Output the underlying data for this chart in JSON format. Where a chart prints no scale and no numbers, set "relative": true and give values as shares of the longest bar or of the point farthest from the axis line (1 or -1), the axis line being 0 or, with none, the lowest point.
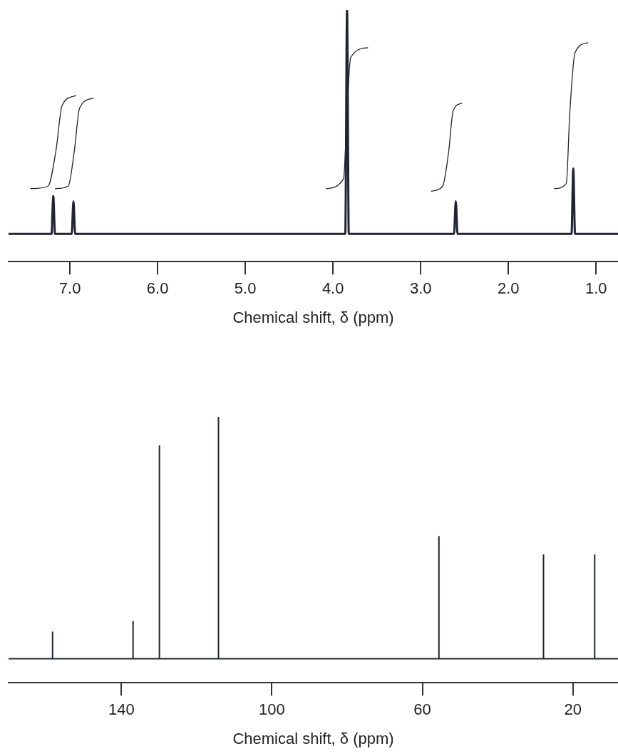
{
  "chart_data": [
    {
      "type": "line",
      "relative": true,
      "xlabel": "Chemical shift, δ (ppm)",
      "xlim": [
        7.7,
        0.75
      ],
      "marker": "none",
      "xticks": [
        {
          "value": 7,
          "label": "7.0"
        },
        {
          "value": 6,
          "label": "6.0"
        },
        {
          "value": 5,
          "label": "5.0"
        },
        {
          "value": 4,
          "label": "4.0"
        },
        {
          "value": 3,
          "label": "3.0"
        },
        {
          "value": 2,
          "label": "2.0"
        },
        {
          "value": 1,
          "label": "1.0"
        }
      ],
      "series": [
        {
          "color": "#1f2430",
          "x": [
            7.7,
            7.21,
            7.19,
            7.17,
            6.98,
            6.96,
            6.94,
            3.86,
            3.84,
            3.82,
            2.62,
            2.6,
            2.58,
            1.28,
            1.26,
            1.24,
            0.75
          ],
          "values": [
            0.11,
            0.11,
            0.26,
            0.11,
            0.11,
            0.24,
            0.11,
            0.11,
            1,
            0.11,
            0.11,
            0.24,
            0.11,
            0.11,
            0.37,
            0.11,
            0.11
          ]
        },
        {
          "color": "#1f2430",
          "x": [
            7.45,
            7.25,
            7.16,
            7.09,
            6.93,
            7.0,
            7.17,
            7.02,
            6.95,
            6.89,
            6.73,
            5.0,
            4.08,
            3.88,
            3.84,
            3.8,
            3.6,
            3.2,
            2.88,
            2.75,
            2.68,
            2.63,
            2.53,
            2.0,
            1.48,
            1.34,
            1.3,
            1.24,
            1.09
          ],
          "values": [
            0.29,
            0.3,
            0.44,
            0.62,
            0.66,
            null,
            0.29,
            0.3,
            0.44,
            0.61,
            0.65,
            null,
            0.29,
            0.33,
            0.59,
            0.81,
            0.85,
            null,
            0.28,
            0.3,
            0.44,
            0.6,
            0.63,
            null,
            0.29,
            0.31,
            0.59,
            0.83,
            0.87
          ]
        }
      ]
    },
    {
      "type": "line",
      "relative": true,
      "xlabel": "Chemical shift, δ (ppm)",
      "xlim": [
        170,
        8
      ],
      "xticks": [
        140,
        100,
        60,
        20
      ],
      "marker": "none",
      "series": [
        {
          "color": "#1f2430",
          "x": [
            170,
            158.3,
            158.3,
            158.3,
            136.9,
            136.9,
            136.9,
            129.9,
            129.9,
            129.9,
            114.2,
            114.2,
            114.2,
            55.6,
            55.6,
            55.6,
            27.8,
            27.8,
            27.8,
            14.2,
            14.2,
            14.2,
            8
          ],
          "values": [
            0.09,
            0.09,
            0.19,
            0.09,
            0.09,
            0.23,
            0.09,
            0.09,
            0.89,
            0.09,
            0.09,
            1,
            0.09,
            0.09,
            0.55,
            0.09,
            0.09,
            0.48,
            0.09,
            0.09,
            0.48,
            0.09,
            0.09
          ]
        }
      ]
    }
  ]
}
